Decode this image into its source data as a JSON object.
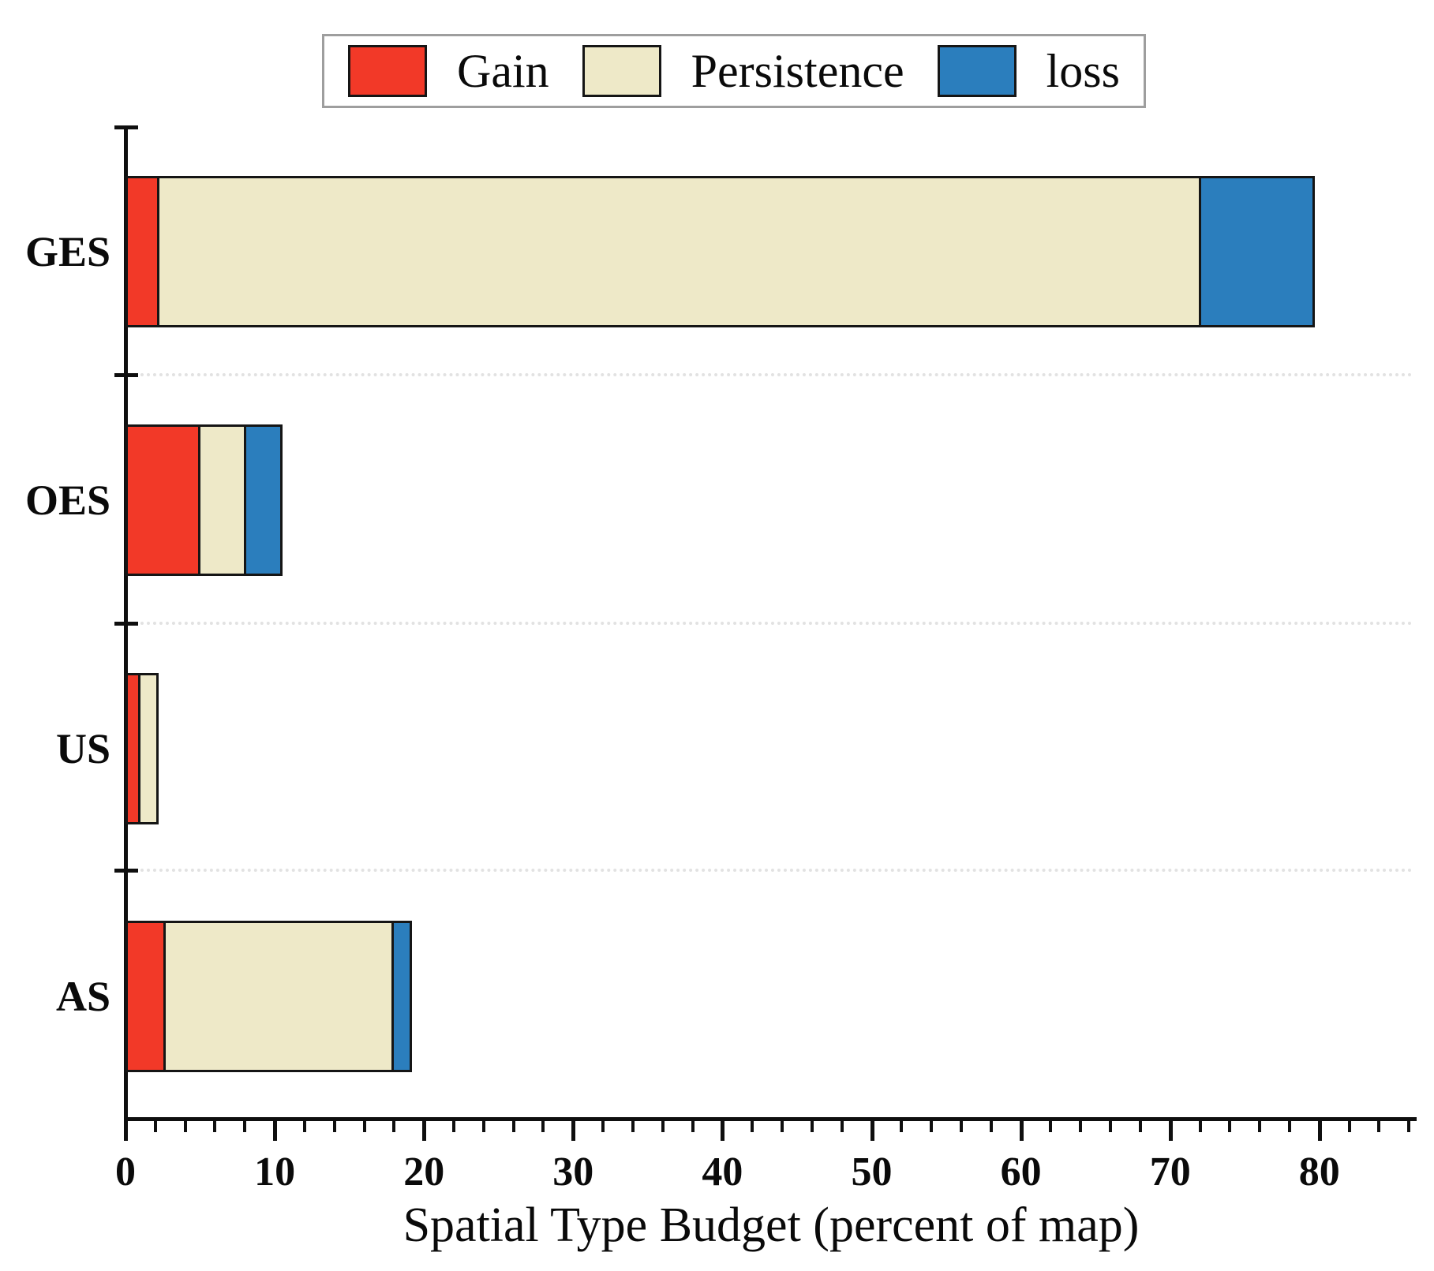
{
  "chart_data": {
    "type": "bar",
    "orientation": "horizontal",
    "stacked": true,
    "title": "",
    "xlabel": "Spatial Type Budget (percent of map)",
    "ylabel": "",
    "categories": [
      "GES",
      "OES",
      "US",
      "AS"
    ],
    "series": [
      {
        "name": "Gain",
        "color": "#f23928",
        "values": [
          2.3,
          5.0,
          1.0,
          2.7
        ]
      },
      {
        "name": "Persistence",
        "color": "#eee9c8",
        "values": [
          69.8,
          3.1,
          1.2,
          15.3
        ]
      },
      {
        "name": "loss",
        "color": "#2b7ebd",
        "values": [
          7.6,
          2.4,
          0.0,
          1.2
        ]
      }
    ],
    "totals": [
      79.7,
      10.5,
      2.2,
      19.2
    ],
    "xlim": [
      0,
      86.5
    ],
    "x_major_ticks": [
      0,
      10,
      20,
      30,
      40,
      50,
      60,
      70,
      80
    ],
    "x_minor_tick_step": 2,
    "grid": "dotted horizontal separator lines between category rows",
    "legend_position": "top",
    "legend_labels": [
      "Gain",
      "Persistence",
      "loss"
    ],
    "colors": {
      "gain": "#f23928",
      "persistence": "#eee9c8",
      "loss": "#2b7ebd",
      "bar_border": "#151515",
      "legend_border": "#9e9e9e",
      "axis": "#0f0f0f",
      "gridline": "#e2e2e2"
    }
  }
}
